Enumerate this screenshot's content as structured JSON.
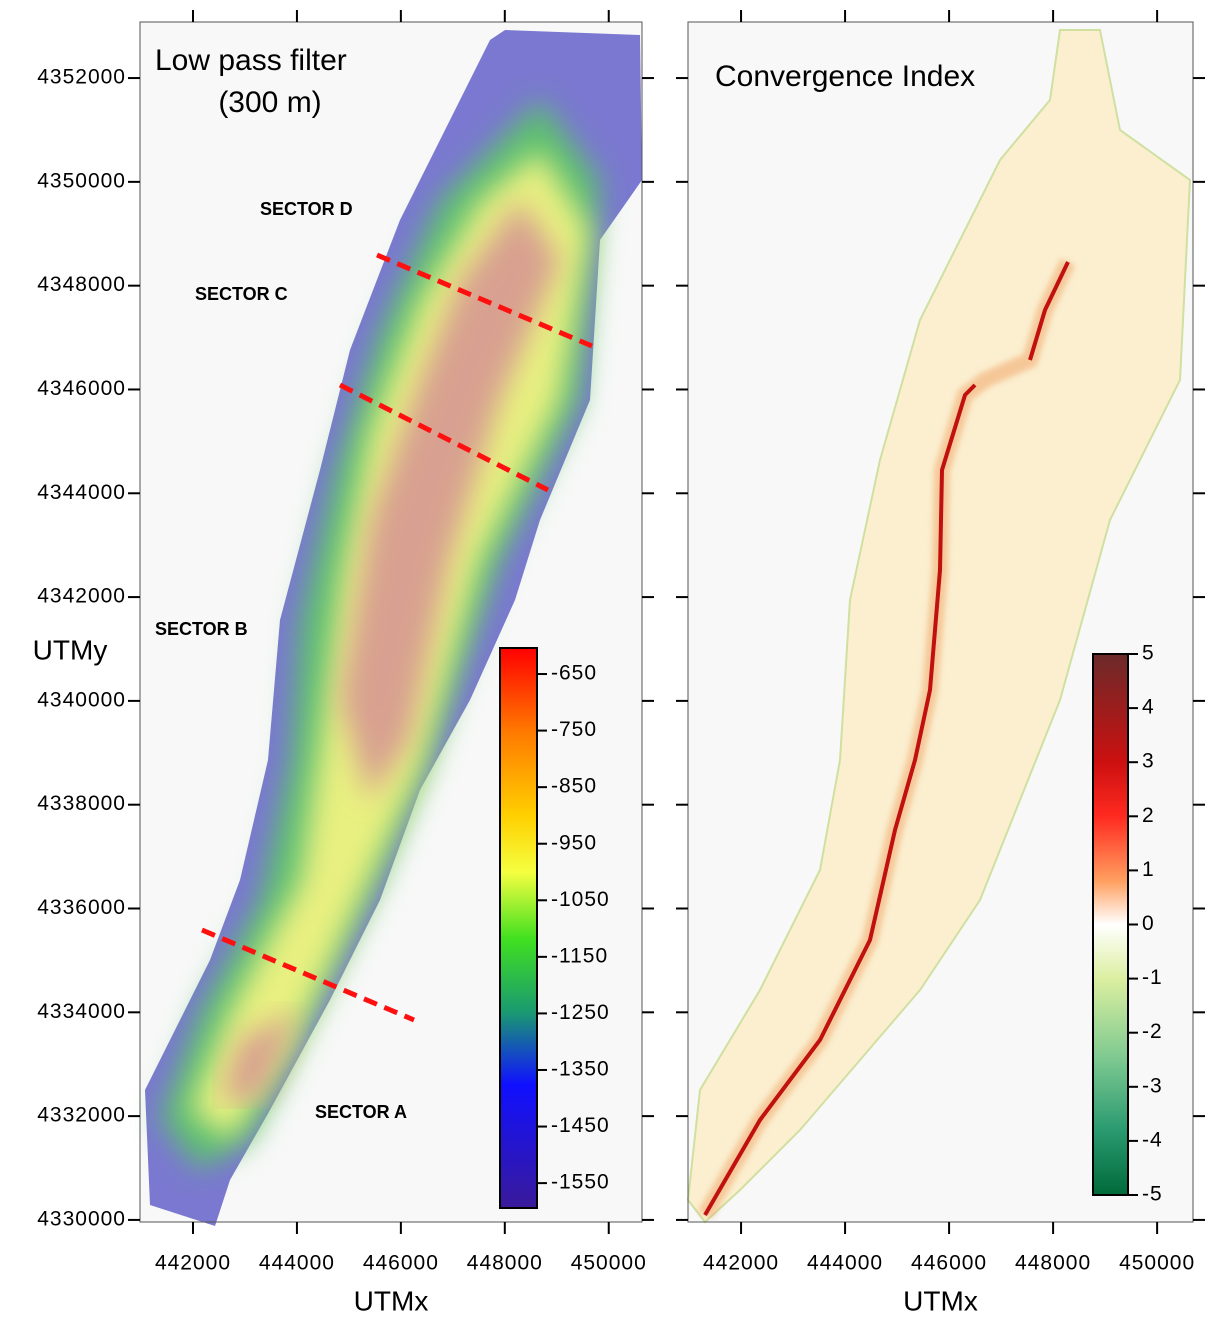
{
  "panels": [
    {
      "title": [
        "Low pass filter",
        "(300 m)"
      ],
      "xlabel": "UTMx",
      "ylabel": "UTMy",
      "xlim": [
        440980,
        450640
      ],
      "ylim": [
        4329960,
        4353080
      ],
      "xticks": [
        442000,
        444000,
        446000,
        448000,
        450000
      ],
      "yticks": [
        4330000,
        4332000,
        4334000,
        4336000,
        4338000,
        4340000,
        4342000,
        4344000,
        4346000,
        4348000,
        4350000,
        4352000
      ],
      "sectors": [
        "SECTOR D",
        "SECTOR C",
        "SECTOR B",
        "SECTOR A"
      ],
      "colorbar": {
        "lim": [
          -1594,
          -604
        ],
        "ticks": [
          -650,
          -750,
          -850,
          -950,
          -1050,
          -1150,
          -1250,
          -1350,
          -1450,
          -1550
        ]
      }
    },
    {
      "title": [
        "Convergence Index"
      ],
      "xlabel": "UTMx",
      "xlim": [
        440980,
        450690
      ],
      "ylim": [
        4329960,
        4353080
      ],
      "xticks": [
        442000,
        444000,
        446000,
        448000,
        450000
      ],
      "yticks": [
        4330000,
        4332000,
        4334000,
        4336000,
        4338000,
        4340000,
        4342000,
        4344000,
        4346000,
        4348000,
        4350000,
        4352000
      ],
      "colorbar": {
        "lim": [
          -5,
          5
        ],
        "ticks": [
          5,
          4,
          3,
          2,
          1,
          0,
          -1,
          -2,
          -3,
          -4,
          -5
        ]
      }
    }
  ]
}
